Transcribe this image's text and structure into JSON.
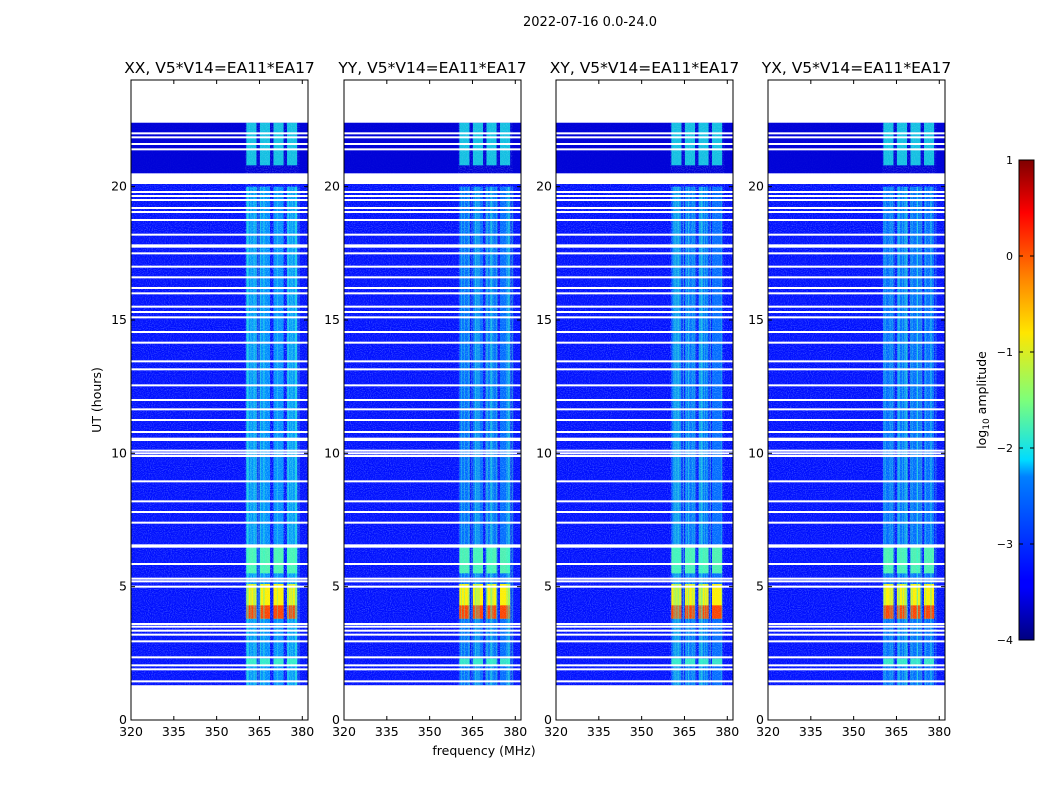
{
  "chart_data": {
    "type": "heatmap",
    "suptitle": "2022-07-16 0.0-24.0",
    "xlabel": "frequency (MHz)",
    "ylabel": "UT (hours)",
    "xlim": [
      320,
      382
    ],
    "ylim": [
      0,
      24
    ],
    "xticks": [
      320,
      335,
      350,
      365,
      380
    ],
    "yticks": [
      0,
      5,
      10,
      15,
      20
    ],
    "panels": [
      {
        "title": "XX, V5*V14=EA11*EA17"
      },
      {
        "title": "YY, V5*V14=EA11*EA17"
      },
      {
        "title": "XY, V5*V14=EA11*EA17"
      },
      {
        "title": "YX, V5*V14=EA11*EA17"
      }
    ],
    "colorbar": {
      "label_prefix": "log",
      "label_sub": "10",
      "label_suffix": " amplitude",
      "range": [
        -4,
        1
      ],
      "ticks": [
        "1",
        "0",
        "−1",
        "−2",
        "−3",
        "−4"
      ],
      "colormap": "jet"
    },
    "data_coverage_hours": [
      1.3,
      22.4
    ],
    "no_data_gap_hours": [
      20.1,
      20.5
    ],
    "flagged_rows_hours": [
      1.45,
      1.9,
      2.05,
      2.35,
      2.95,
      3.2,
      3.35,
      3.5,
      3.6,
      5.0,
      5.2,
      5.3,
      5.85,
      6.5,
      6.55,
      7.4,
      7.8,
      8.2,
      8.95,
      9.9,
      10.0,
      10.1,
      10.5,
      10.55,
      10.8,
      11.25,
      11.65,
      12.0,
      12.55,
      13.15,
      13.45,
      14.15,
      14.55,
      15.1,
      15.3,
      15.5,
      16.0,
      16.2,
      16.6,
      17.0,
      17.5,
      17.75,
      17.8,
      18.2,
      18.75,
      19.05,
      19.2,
      19.5,
      19.65,
      19.8,
      21.4,
      21.6,
      21.85,
      22.0
    ],
    "rfi_channel_band_mhz": [
      360,
      379
    ],
    "strong_rfi_block_hours": [
      3.8,
      5.1
    ],
    "rfi_block_hours": [
      5.5,
      6.5
    ],
    "late_rfi_hours": [
      20.8,
      22.4
    ]
  }
}
